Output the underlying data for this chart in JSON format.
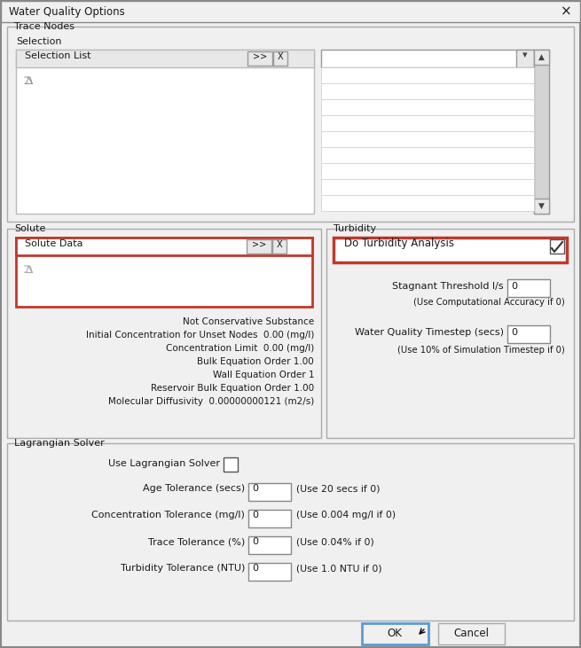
{
  "title": "Water Quality Options",
  "bg": "#f0f0f0",
  "white": "#ffffff",
  "red": "#c0392b",
  "blue_btn": "#5b9bd5",
  "gray_border": "#aaaaaa",
  "dark_gray": "#555555",
  "mid_gray": "#cccccc",
  "light_gray": "#e8e8e8",
  "section_border": "#aaaaaa",
  "text_color": "#1a1a1a",
  "solute_props": [
    "Not Conservative Substance",
    "Initial Concentration for Unset Nodes  0.00 (mg/l)",
    "Concentration Limit  0.00 (mg/l)",
    "Bulk Equation Order 1.00",
    "Wall Equation Order 1",
    "Reservoir Bulk Equation Order 1.00",
    "Molecular Diffusivity  0.00000000121 (m2/s)"
  ],
  "lag_items": [
    [
      "Age Tolerance (secs)",
      "(Use 20 secs if 0)"
    ],
    [
      "Concentration Tolerance (mg/l)",
      "(Use 0.004 mg/l if 0)"
    ],
    [
      "Trace Tolerance (%)",
      "(Use 0.04% if 0)"
    ],
    [
      "Turbidity Tolerance (NTU)",
      "(Use 1.0 NTU if 0)"
    ]
  ]
}
